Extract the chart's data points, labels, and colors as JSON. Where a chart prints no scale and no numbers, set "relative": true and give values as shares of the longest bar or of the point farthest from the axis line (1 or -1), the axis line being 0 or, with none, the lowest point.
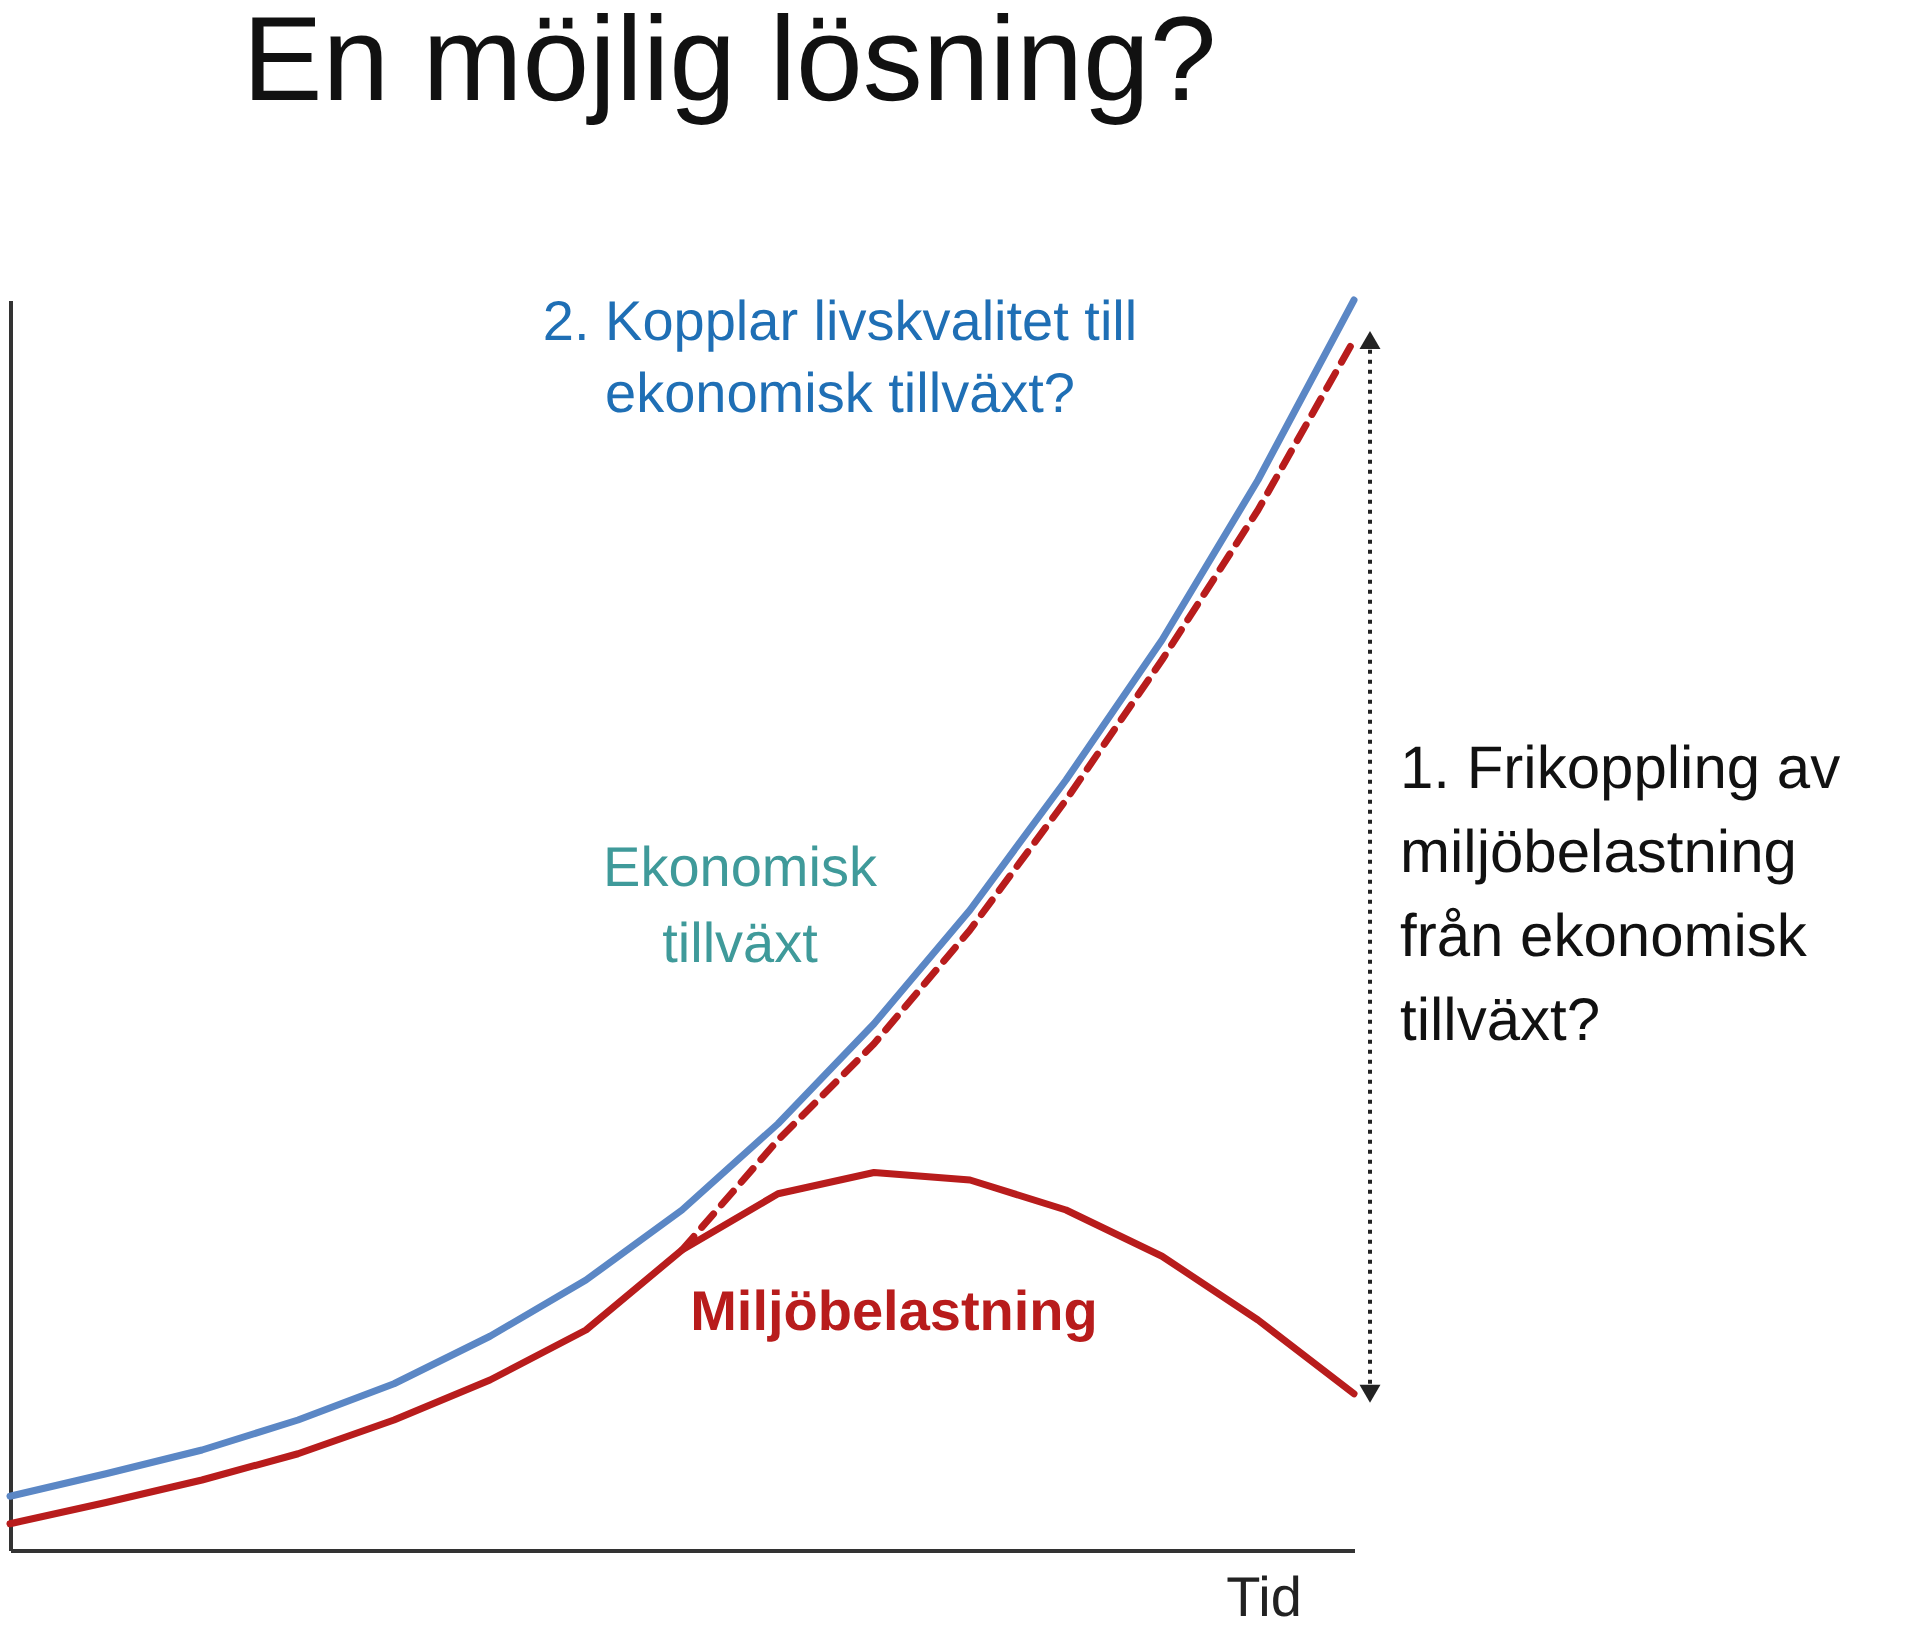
{
  "chart_data": {
    "type": "line",
    "title": "En möjlig lösning?",
    "xlabel": "Tid",
    "relative": true,
    "grid": false,
    "marker": "none",
    "categories": [
      null,
      null,
      null,
      null,
      null,
      null,
      null,
      null,
      null,
      null,
      null,
      null,
      null,
      null,
      null
    ],
    "series": [
      {
        "name": "Ekonomisk tillväxt",
        "color": "#5b87c5",
        "line_style": "solid",
        "values": [
          0.043,
          0.061,
          0.08,
          0.104,
          0.133,
          0.171,
          0.216,
          0.272,
          0.341,
          0.421,
          0.512,
          0.616,
          0.728,
          0.856,
          1
        ]
      },
      {
        "name": "Miljöbelastning",
        "color": "#b81c1c",
        "line_style": "solid",
        "values": [
          0.021,
          0.038,
          0.056,
          0.077,
          0.104,
          0.136,
          0.176,
          0.24,
          0.285,
          0.302,
          0.296,
          0.272,
          0.235,
          0.184,
          0.125
        ]
      },
      {
        "color": "#b81c1c",
        "line_style": "dashed",
        "values": [
          null,
          null,
          null,
          null,
          null,
          null,
          null,
          0.24,
          0.328,
          0.405,
          0.496,
          0.6,
          0.712,
          0.832,
          0.968
        ]
      }
    ],
    "annotations": [
      "2. Kopplar livskvalitet till ekonomisk tillväxt?",
      "1. Frikoppling av miljöbelastning från ekonomisk tillväxt?"
    ]
  }
}
